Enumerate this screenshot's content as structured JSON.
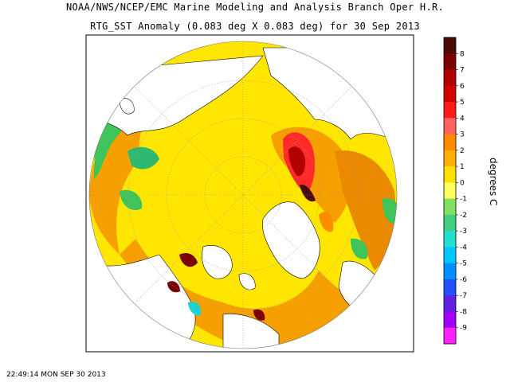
{
  "chart_data": {
    "type": "heatmap",
    "title": "NOAA/NWS/NCEP/EMC Marine Modeling and Analysis Branch Oper H.R.",
    "subtitle": "RTG_SST Anomaly (0.083 deg X 0.083 deg) for 30 Sep 2013",
    "colorbar": {
      "label": "degrees C",
      "ticks": [
        "8",
        "7",
        "6",
        "5",
        "4",
        "3",
        "2",
        "1",
        "0",
        "-1",
        "-2",
        "-3",
        "-4",
        "-5",
        "-6",
        "-7",
        "-8",
        "-9"
      ],
      "range": [
        -9,
        9
      ],
      "colors": [
        "#4a0a0a",
        "#7a0000",
        "#b00000",
        "#d40000",
        "#ff1a1a",
        "#ff6060",
        "#ff8c00",
        "#ffb000",
        "#ffe000",
        "#ffff60",
        "#80e060",
        "#40d080",
        "#20e0d0",
        "#00c8ff",
        "#0090ff",
        "#2050ff",
        "#6020e0",
        "#a000ff",
        "#ff20ff"
      ]
    },
    "projection": "polar-stereographic",
    "grid": true
  },
  "timestamp": "22:49:14  MON SEP 30 2013"
}
